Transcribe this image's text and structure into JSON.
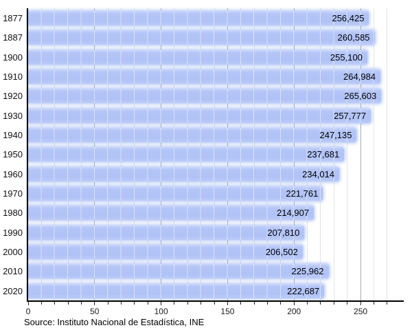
{
  "chart_data": {
    "type": "bar",
    "orientation": "horizontal",
    "title": "",
    "categories": [
      "1877",
      "1887",
      "1900",
      "1910",
      "1920",
      "1930",
      "1940",
      "1950",
      "1960",
      "1970",
      "1980",
      "1990",
      "2000",
      "2010",
      "2020"
    ],
    "values": [
      256425,
      260585,
      255100,
      264984,
      265603,
      257777,
      247135,
      237681,
      234014,
      221761,
      214907,
      207810,
      206502,
      225962,
      222687
    ],
    "value_labels": [
      "256,425",
      "260,585",
      "255,100",
      "264,984",
      "265,603",
      "257,777",
      "247,135",
      "237,681",
      "234,014",
      "221,761",
      "214,907",
      "207,810",
      "206,502",
      "225,962",
      "222,687"
    ],
    "x_axis": {
      "unit_divisor": 1000,
      "min": 0,
      "max": 282,
      "minor_step": 10,
      "major_step": 50,
      "tick_values": [
        0,
        50,
        100,
        150,
        200,
        250
      ],
      "tick_labels": [
        "0",
        "50",
        "100",
        "150",
        "200",
        "250"
      ]
    },
    "grid": "vertical, minor every 10, major every 50",
    "legend_position": "none",
    "source": "Source: Instituto Nacional de Estadística, INE",
    "colors": {
      "bar": "#b3c4f6",
      "bar_glow": "#a7bef4",
      "grid_minor": "#e3e3e3",
      "grid_major": "#a9a9a9",
      "axis": "#000000",
      "text": "#000000"
    }
  }
}
